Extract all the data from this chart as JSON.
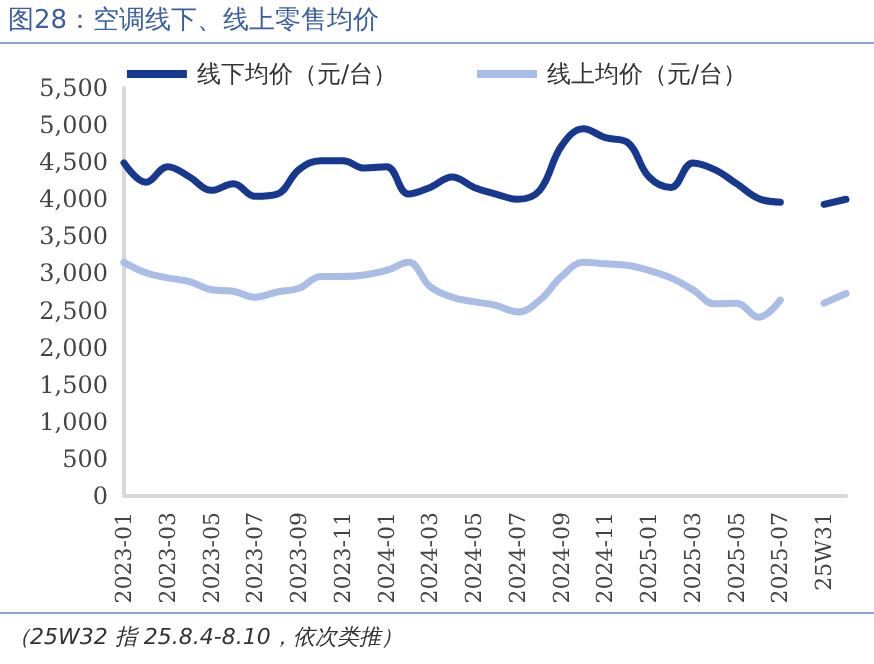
{
  "chart_data": {
    "type": "line",
    "title": "图28：空调线下、线上零售均价",
    "annotations": [
      "（25W32 指 25.8.4-8.10，依次类推）"
    ],
    "categories": [
      "2023-01",
      null,
      "2023-03",
      null,
      "2023-05",
      null,
      "2023-07",
      null,
      "2023-09",
      null,
      "2023-11",
      null,
      "2024-01",
      null,
      "2024-03",
      null,
      "2024-05",
      null,
      "2024-07",
      null,
      "2024-09",
      null,
      "2024-11",
      null,
      "2025-01",
      null,
      "2025-03",
      null,
      "2025-05",
      null,
      "2025-07",
      null,
      "25W31",
      null
    ],
    "series": [
      {
        "name": "线下均价（元/台）",
        "color": "#17388f",
        "values": [
          4490,
          4230,
          4440,
          4300,
          4120,
          4210,
          4040,
          4070,
          4400,
          4520,
          4520,
          4420,
          4440,
          4070,
          4160,
          4300,
          4160,
          4070,
          4000,
          4120,
          4720,
          4950,
          4830,
          4770,
          4300,
          4160,
          4490,
          4400,
          4210,
          4010,
          3960,
          null,
          3930,
          4000
        ]
      },
      {
        "name": "线上均价（元/台）",
        "color": "#a9bde6",
        "values": [
          3150,
          3010,
          2940,
          2890,
          2780,
          2760,
          2680,
          2750,
          2800,
          2960,
          2960,
          2980,
          3040,
          3150,
          2820,
          2680,
          2620,
          2570,
          2480,
          2640,
          2960,
          3150,
          3130,
          3110,
          3040,
          2940,
          2780,
          2590,
          2600,
          2410,
          2640,
          null,
          2600,
          2730
        ]
      }
    ],
    "ylim": [
      0,
      5500
    ],
    "yticks": [
      {
        "value": 0,
        "label": "0"
      },
      {
        "value": 500,
        "label": "500"
      },
      {
        "value": 1000,
        "label": "1,000"
      },
      {
        "value": 1500,
        "label": "1,500"
      },
      {
        "value": 2000,
        "label": "2,000"
      },
      {
        "value": 2500,
        "label": "2,500"
      },
      {
        "value": 3000,
        "label": "3,000"
      },
      {
        "value": 3500,
        "label": "3,500"
      },
      {
        "value": 4000,
        "label": "4,000"
      },
      {
        "value": 4500,
        "label": "4,500"
      },
      {
        "value": 5000,
        "label": "5,000"
      },
      {
        "value": 5500,
        "label": "5,500"
      }
    ],
    "grid": false,
    "legend": "top",
    "marker": "none",
    "line_style": "solid"
  }
}
